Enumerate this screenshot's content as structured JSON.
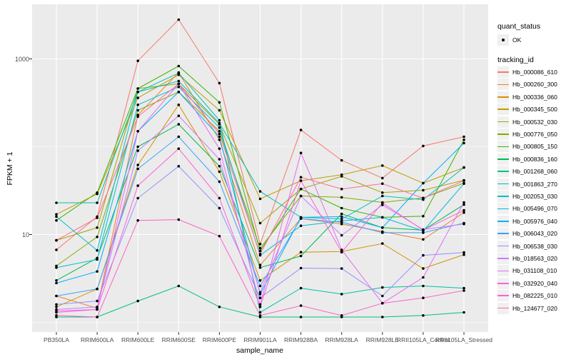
{
  "figure": {
    "panel_background": "#EBEBEB",
    "gridline_color": "#FFFFFF",
    "tick_color": "#333333",
    "point_color": "#000000"
  },
  "axes": {
    "x_title": "sample_name",
    "y_title": "FPKM + 1"
  },
  "legend": {
    "quant_status": {
      "title": "quant_status",
      "items": [
        {
          "label": "OK",
          "symbol": "black-point"
        }
      ]
    },
    "tracking_id": {
      "title": "tracking_id"
    }
  },
  "chart_data": {
    "type": "line",
    "title": "",
    "xlabel": "sample_name",
    "ylabel": "FPKM + 1",
    "y_scale": "log10",
    "ylim": [
      0.77,
      4200
    ],
    "grid": "on",
    "legend_position": "right",
    "point_marker": {
      "shape": "circle",
      "color": "#000000",
      "meaning": "quant_status OK"
    },
    "y_ticks": [
      {
        "label": "1000",
        "value": 1000
      },
      {
        "label": "10",
        "value": 10
      }
    ],
    "y_minor_gridline_values": [
      1,
      100
    ],
    "categories": [
      "PB350LA",
      "RRIM600LA",
      "RRIM600LE",
      "RRIM600SE",
      "RRIM600PE",
      "RRIM901LA",
      "RRIM928BA",
      "RRIM928LA",
      "RRIM928LE",
      "RRII105LA_Control",
      "RRII105LA_Stressed"
    ],
    "series": [
      {
        "name": "Hb_000086_610",
        "color": "#F8766D",
        "values": [
          6.7,
          16,
          950,
          2800,
          530,
          7.8,
          155,
          70,
          44,
          102,
          130
        ]
      },
      {
        "name": "Hb_000260_300",
        "color": "#EA8331",
        "values": [
          2.0,
          1.45,
          230,
          700,
          120,
          4.5,
          15.2,
          13.2,
          10.8,
          8.8,
          17.8
        ]
      },
      {
        "name": "Hb_000336_060",
        "color": "#D89000",
        "values": [
          1.5,
          2.4,
          62,
          300,
          52,
          3.0,
          6.3,
          6.4,
          7.9,
          4.1,
          5.9
        ]
      },
      {
        "name": "Hb_000345_500",
        "color": "#C09B00",
        "values": [
          17,
          29,
          360,
          660,
          260,
          25.5,
          41,
          48,
          61,
          38.5,
          58
        ]
      },
      {
        "name": "Hb_000532_030",
        "color": "#A3A500",
        "values": [
          8.6,
          12,
          460,
          520,
          180,
          13.5,
          33,
          46,
          30,
          32,
          41.5
        ]
      },
      {
        "name": "Hb_000776_050",
        "color": "#7CAE00",
        "values": [
          4.4,
          9.4,
          260,
          420,
          150,
          7.0,
          27.5,
          26.5,
          23.2,
          26.1,
          38.5
        ]
      },
      {
        "name": "Hb_000805_150",
        "color": "#39B600",
        "values": [
          14.5,
          30,
          460,
          830,
          320,
          6.5,
          33,
          20,
          15.7,
          16.2,
          120
        ]
      },
      {
        "name": "Hb_000836_160",
        "color": "#00BB4E",
        "values": [
          3.0,
          5.4,
          100,
          180,
          60,
          4.2,
          5.7,
          17.2,
          12,
          11.2,
          21.9
        ]
      },
      {
        "name": "Hb_001268_060",
        "color": "#00BF7D",
        "values": [
          1.15,
          1.15,
          1.75,
          2.6,
          1.5,
          1.15,
          1.15,
          1.15,
          1.15,
          1.2,
          1.3
        ]
      },
      {
        "name": "Hb_001863_270",
        "color": "#00C1A3",
        "values": [
          23,
          23,
          420,
          690,
          200,
          1.3,
          2.45,
          2.1,
          2.5,
          2.6,
          2.45
        ]
      },
      {
        "name": "Hb_002053_030",
        "color": "#00BFC4",
        "values": [
          16,
          6.6,
          420,
          560,
          185,
          31,
          15.7,
          15,
          27.5,
          25,
          58
        ]
      },
      {
        "name": "Hb_005496_070",
        "color": "#00BADE",
        "values": [
          4.2,
          5.2,
          300,
          480,
          165,
          5.8,
          12.6,
          14.3,
          15.7,
          11,
          38
        ]
      },
      {
        "name": "Hb_005976_040",
        "color": "#00B0F6",
        "values": [
          2.8,
          3.8,
          150,
          420,
          130,
          2.1,
          15.7,
          16,
          12,
          38.5,
          110
        ]
      },
      {
        "name": "Hb_006043_020",
        "color": "#35A2FF",
        "values": [
          2.0,
          2.4,
          56,
          130,
          40,
          2.6,
          15.2,
          13.8,
          10.5,
          10.5,
          13.5
        ]
      },
      {
        "name": "Hb_006538_030",
        "color": "#9590FF",
        "values": [
          1.6,
          1.75,
          26,
          60,
          20,
          1.9,
          4.15,
          4.1,
          2.0,
          5.8,
          6.25
        ]
      },
      {
        "name": "Hb_018563_020",
        "color": "#C77CFF",
        "values": [
          1.4,
          1.5,
          90,
          225,
          72,
          2.2,
          27.5,
          9.8,
          21.8,
          11.4,
          13.2
        ]
      },
      {
        "name": "Hb_031108_010",
        "color": "#E76BF3",
        "values": [
          1.35,
          1.4,
          150,
          520,
          95,
          1.6,
          85,
          6.7,
          1.65,
          3.25,
          23.2
        ]
      },
      {
        "name": "Hb_032920_040",
        "color": "#FA62DB",
        "values": [
          1.3,
          1.4,
          36,
          95,
          26,
          1.5,
          41,
          6.3,
          23,
          11.2,
          18.9
        ]
      },
      {
        "name": "Hb_082225_010",
        "color": "#FF61CC",
        "values": [
          1.2,
          1.15,
          14.5,
          14.8,
          9.6,
          1.2,
          1.55,
          1.2,
          1.65,
          1.9,
          2.3
        ]
      },
      {
        "name": "Hb_124677_020",
        "color": "#FF6A98",
        "values": [
          8.6,
          15.5,
          220,
          520,
          140,
          6.0,
          45,
          33,
          38,
          26,
          41
        ]
      }
    ]
  }
}
